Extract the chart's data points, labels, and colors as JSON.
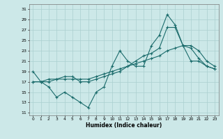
{
  "xlabel": "Humidex (Indice chaleur)",
  "bg_color": "#cce8e8",
  "grid_color": "#aacfcf",
  "line_color": "#1a6b6b",
  "xlim": [
    -0.5,
    23.5
  ],
  "ylim": [
    10.5,
    32
  ],
  "yticks": [
    11,
    13,
    15,
    17,
    19,
    21,
    23,
    25,
    27,
    29,
    31
  ],
  "xticks": [
    0,
    1,
    2,
    3,
    4,
    5,
    6,
    7,
    8,
    9,
    10,
    11,
    12,
    13,
    14,
    15,
    16,
    17,
    18,
    19,
    20,
    21,
    22,
    23
  ],
  "line1_x": [
    0,
    1,
    2,
    3,
    4,
    5,
    6,
    7,
    8,
    9,
    10,
    11,
    12,
    13,
    14,
    15,
    16,
    17,
    18,
    19,
    20,
    21,
    22,
    23
  ],
  "line1_y": [
    19,
    17,
    16,
    14,
    15,
    14,
    13,
    12,
    15,
    16,
    20,
    23,
    21,
    20,
    20,
    24,
    26,
    30,
    28,
    24,
    21,
    21,
    20,
    19.5
  ],
  "line2_x": [
    0,
    1,
    2,
    3,
    4,
    5,
    6,
    7,
    8,
    9,
    10,
    11,
    12,
    13,
    14,
    15,
    16,
    17,
    18,
    19,
    20,
    21,
    22,
    23
  ],
  "line2_y": [
    17,
    17,
    17,
    17.5,
    18,
    18,
    17,
    17,
    17.5,
    18,
    18.5,
    19,
    20,
    21,
    22,
    22.5,
    23.5,
    27.5,
    27.5,
    24,
    23.5,
    21.5,
    20,
    19.5
  ],
  "line3_x": [
    0,
    1,
    2,
    3,
    4,
    5,
    6,
    7,
    8,
    9,
    10,
    11,
    12,
    13,
    14,
    15,
    16,
    17,
    18,
    19,
    20,
    21,
    22,
    23
  ],
  "line3_y": [
    17,
    17,
    17.5,
    17.5,
    17.5,
    17.5,
    17.5,
    17.5,
    18,
    18.5,
    19,
    19.5,
    20,
    20.5,
    21,
    21.5,
    22,
    23,
    23.5,
    24,
    24,
    23,
    21,
    20
  ]
}
